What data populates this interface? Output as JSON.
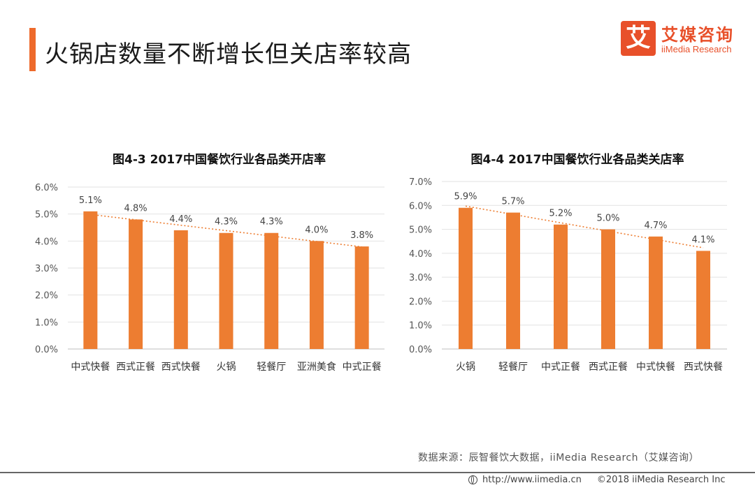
{
  "page": {
    "title": "火锅店数量不断增长但关店率较高",
    "accent_color": "#ee6a2b"
  },
  "logo": {
    "mark": "艾",
    "name_cn": "艾媒咨询",
    "name_en": "iiMedia Research"
  },
  "source": "数据来源：辰智餐饮大数据，iiMedia Research（艾媒咨询）",
  "footer": {
    "url": "http://www.iimedia.cn",
    "copyright": "©2018 iiMedia Research Inc"
  },
  "chart_data": [
    {
      "type": "bar",
      "title": "图4-3 2017中国餐饮行业各品类开店率",
      "categories": [
        "中式快餐",
        "西式正餐",
        "西式快餐",
        "火锅",
        "轻餐厅",
        "亚洲美食",
        "中式正餐"
      ],
      "values": [
        5.1,
        4.8,
        4.4,
        4.3,
        4.3,
        4.0,
        3.8
      ],
      "value_labels": [
        "5.1%",
        "4.8%",
        "4.4%",
        "4.3%",
        "4.3%",
        "4.0%",
        "3.8%"
      ],
      "yticks": [
        0,
        1,
        2,
        3,
        4,
        5,
        6
      ],
      "ytick_labels": [
        "0.0%",
        "1.0%",
        "2.0%",
        "3.0%",
        "4.0%",
        "5.0%",
        "6.0%"
      ],
      "ylim": [
        0,
        6
      ],
      "trendline": "linear, dotted",
      "bar_color": "#ed7d31",
      "grid": true
    },
    {
      "type": "bar",
      "title": "图4-4 2017中国餐饮行业各品类关店率",
      "categories": [
        "火锅",
        "轻餐厅",
        "中式正餐",
        "西式正餐",
        "中式快餐",
        "西式快餐"
      ],
      "values": [
        5.9,
        5.7,
        5.2,
        5.0,
        4.7,
        4.1
      ],
      "value_labels": [
        "5.9%",
        "5.7%",
        "5.2%",
        "5.0%",
        "4.7%",
        "4.1%"
      ],
      "yticks": [
        0,
        1,
        2,
        3,
        4,
        5,
        6,
        7
      ],
      "ytick_labels": [
        "0.0%",
        "1.0%",
        "2.0%",
        "3.0%",
        "4.0%",
        "5.0%",
        "6.0%",
        "7.0%"
      ],
      "ylim": [
        0,
        7
      ],
      "trendline": "linear, dotted",
      "bar_color": "#ed7d31",
      "grid": true
    }
  ]
}
